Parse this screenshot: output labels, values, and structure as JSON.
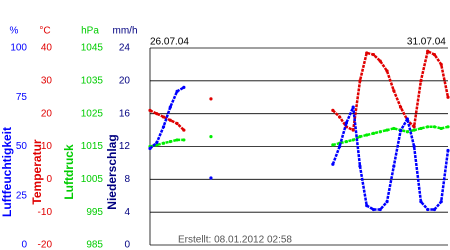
{
  "chart_data": {
    "type": "line",
    "x": [
      0,
      3,
      6,
      9,
      12,
      15,
      18,
      21,
      24,
      27,
      30,
      33,
      36,
      39,
      42,
      45,
      48,
      51,
      54,
      57,
      60,
      63,
      66,
      69,
      72,
      75,
      78,
      81,
      84,
      87,
      90,
      93,
      96,
      99,
      102,
      105,
      108,
      111,
      114,
      117,
      120,
      123,
      126,
      129,
      132
    ],
    "xlim": [
      0,
      132
    ],
    "date_labels": [
      "26.07.04",
      "31.07.04"
    ],
    "footer": "Erstellt: 08.01.2012 02:58",
    "grid": true,
    "axes": [
      {
        "unit": "%",
        "label": "Luftfeuchtigkeit",
        "color": "#0000ff",
        "ylim": [
          0,
          100
        ],
        "yticks": [
          0,
          25,
          50,
          75,
          100
        ]
      },
      {
        "unit": "°C",
        "label": "Temperatur",
        "color": "#e00000",
        "ylim": [
          -20,
          40
        ],
        "yticks": [
          -20,
          -10,
          0,
          10,
          20,
          30,
          40
        ]
      },
      {
        "unit": "hPa",
        "label": "Luftdruck",
        "color": "#00cc00",
        "ylim": [
          985,
          1045
        ],
        "yticks": [
          985,
          995,
          1005,
          1015,
          1025,
          1035,
          1045
        ]
      },
      {
        "unit": "mm/h",
        "label": "Niederschlag",
        "color": "#000080",
        "ylim": [
          0,
          24
        ],
        "yticks": [
          0,
          4,
          8,
          12,
          16,
          20,
          24
        ]
      }
    ],
    "series": [
      {
        "axis": 2,
        "color": "#00ee00",
        "values": [
          1015,
          1015.5,
          1016,
          1016.5,
          1017,
          1017,
          null,
          null,
          null,
          1018,
          null,
          null,
          null,
          null,
          null,
          null,
          null,
          null,
          null,
          null,
          null,
          null,
          null,
          null,
          null,
          null,
          null,
          1015.5,
          1016,
          1016.5,
          1017,
          1018,
          1018.5,
          1019,
          1019.5,
          1020,
          1020.5,
          1020,
          1019.5,
          1020,
          1020.5,
          1021,
          1021,
          1020.5,
          1021
        ]
      },
      {
        "axis": 1,
        "color": "#e00000",
        "values": [
          21,
          20,
          19,
          18,
          17,
          15,
          null,
          null,
          null,
          24.5,
          null,
          null,
          null,
          null,
          null,
          null,
          null,
          null,
          null,
          null,
          null,
          null,
          null,
          null,
          null,
          null,
          null,
          21,
          19,
          16,
          15,
          30,
          38.5,
          38,
          36,
          33,
          27,
          22,
          18,
          16,
          30,
          39,
          38,
          35,
          25
        ]
      },
      {
        "axis": 0,
        "color": "#0000ff",
        "values": [
          49,
          52,
          60,
          70,
          78,
          80,
          null,
          null,
          null,
          34,
          null,
          null,
          null,
          null,
          null,
          null,
          null,
          null,
          null,
          null,
          null,
          null,
          null,
          null,
          null,
          null,
          null,
          41,
          50,
          62,
          70,
          40,
          20,
          18,
          18,
          22,
          40,
          58,
          64,
          50,
          22,
          18,
          18,
          22,
          48
        ]
      }
    ]
  }
}
